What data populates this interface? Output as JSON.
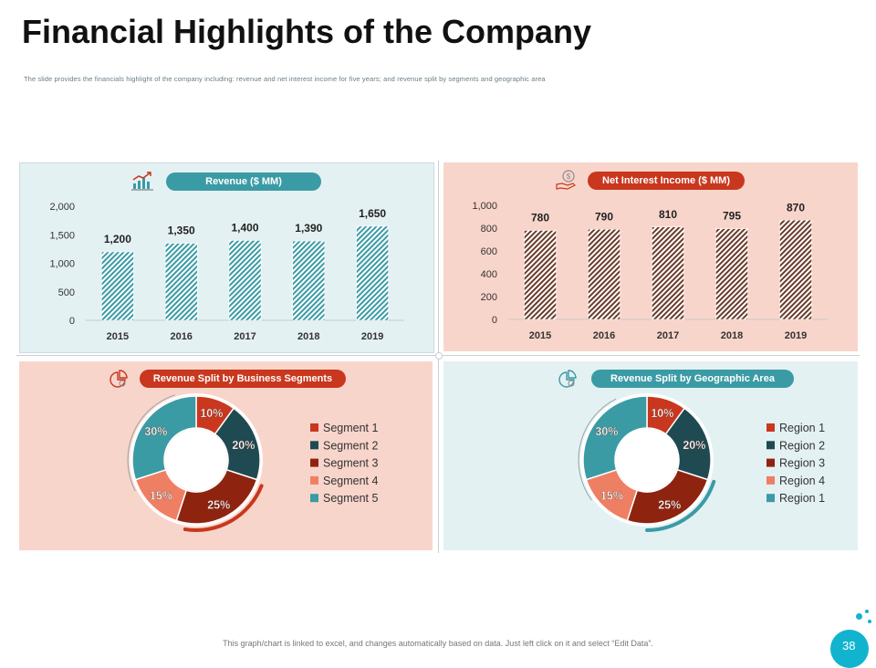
{
  "page": {
    "title": "Financial Highlights of the Company",
    "subtitle": "The slide provides the financials highlight of the company including: revenue and net interest income for five years; and revenue split by segments and geographic area",
    "footer": "This graph/chart is linked to excel, and changes automatically based on data. Just left click on it and select “Edit Data”.",
    "page_number": "38"
  },
  "colors": {
    "teal": "#3a9ba5",
    "dark_teal": "#1f4a52",
    "red": "#c8371e",
    "dark_red": "#8e2410",
    "salmon": "#ef7f63",
    "light_teal_bg": "#e4f1f3",
    "peach_bg": "#f8d5cb"
  },
  "chart_data": [
    {
      "type": "bar",
      "title": "Revenue ($ MM)",
      "categories": [
        "2015",
        "2016",
        "2017",
        "2018",
        "2019"
      ],
      "values": [
        1200,
        1350,
        1400,
        1390,
        1650
      ],
      "data_labels": [
        "1,200",
        "1,350",
        "1,400",
        "1,390",
        "1,650"
      ],
      "ylim": [
        0,
        2000
      ],
      "yticks": [
        0,
        500,
        1000,
        1500,
        2000
      ],
      "ytick_labels": [
        "0",
        "500",
        "1,000",
        "1,500",
        "2,000"
      ],
      "bar_color": "#3a9ba5",
      "pattern": "hatched"
    },
    {
      "type": "bar",
      "title": "Net Interest Income ($ MM)",
      "categories": [
        "2015",
        "2016",
        "2017",
        "2018",
        "2019"
      ],
      "values": [
        780,
        790,
        810,
        795,
        870
      ],
      "data_labels": [
        "780",
        "790",
        "810",
        "795",
        "870"
      ],
      "ylim": [
        0,
        1000
      ],
      "yticks": [
        0,
        200,
        400,
        600,
        800,
        1000
      ],
      "ytick_labels": [
        "0",
        "200",
        "400",
        "600",
        "800",
        "1,000"
      ],
      "bar_color": "#6b3b2a",
      "pattern": "hatched"
    },
    {
      "type": "pie",
      "title": "Revenue Split by Business Segments",
      "labels": [
        "Segment 1",
        "Segment 2",
        "Segment 3",
        "Segment 4",
        "Segment 5"
      ],
      "values": [
        10,
        20,
        25,
        15,
        30
      ],
      "data_labels": [
        "10%",
        "20%",
        "25%",
        "15%",
        "30%"
      ],
      "colors": [
        "#c8371e",
        "#1f4a52",
        "#8e2410",
        "#ef7f63",
        "#3a9ba5"
      ],
      "donut": true,
      "legend": "right"
    },
    {
      "type": "pie",
      "title": "Revenue Split by Geographic Area",
      "labels": [
        "Region 1",
        "Region 2",
        "Region 3",
        "Region 4",
        "Region 1"
      ],
      "values": [
        10,
        20,
        25,
        15,
        30
      ],
      "data_labels": [
        "10%",
        "20%",
        "25%",
        "15%",
        "30%"
      ],
      "colors": [
        "#c8371e",
        "#1f4a52",
        "#8e2410",
        "#ef7f63",
        "#3a9ba5"
      ],
      "donut": true,
      "legend": "right"
    }
  ]
}
